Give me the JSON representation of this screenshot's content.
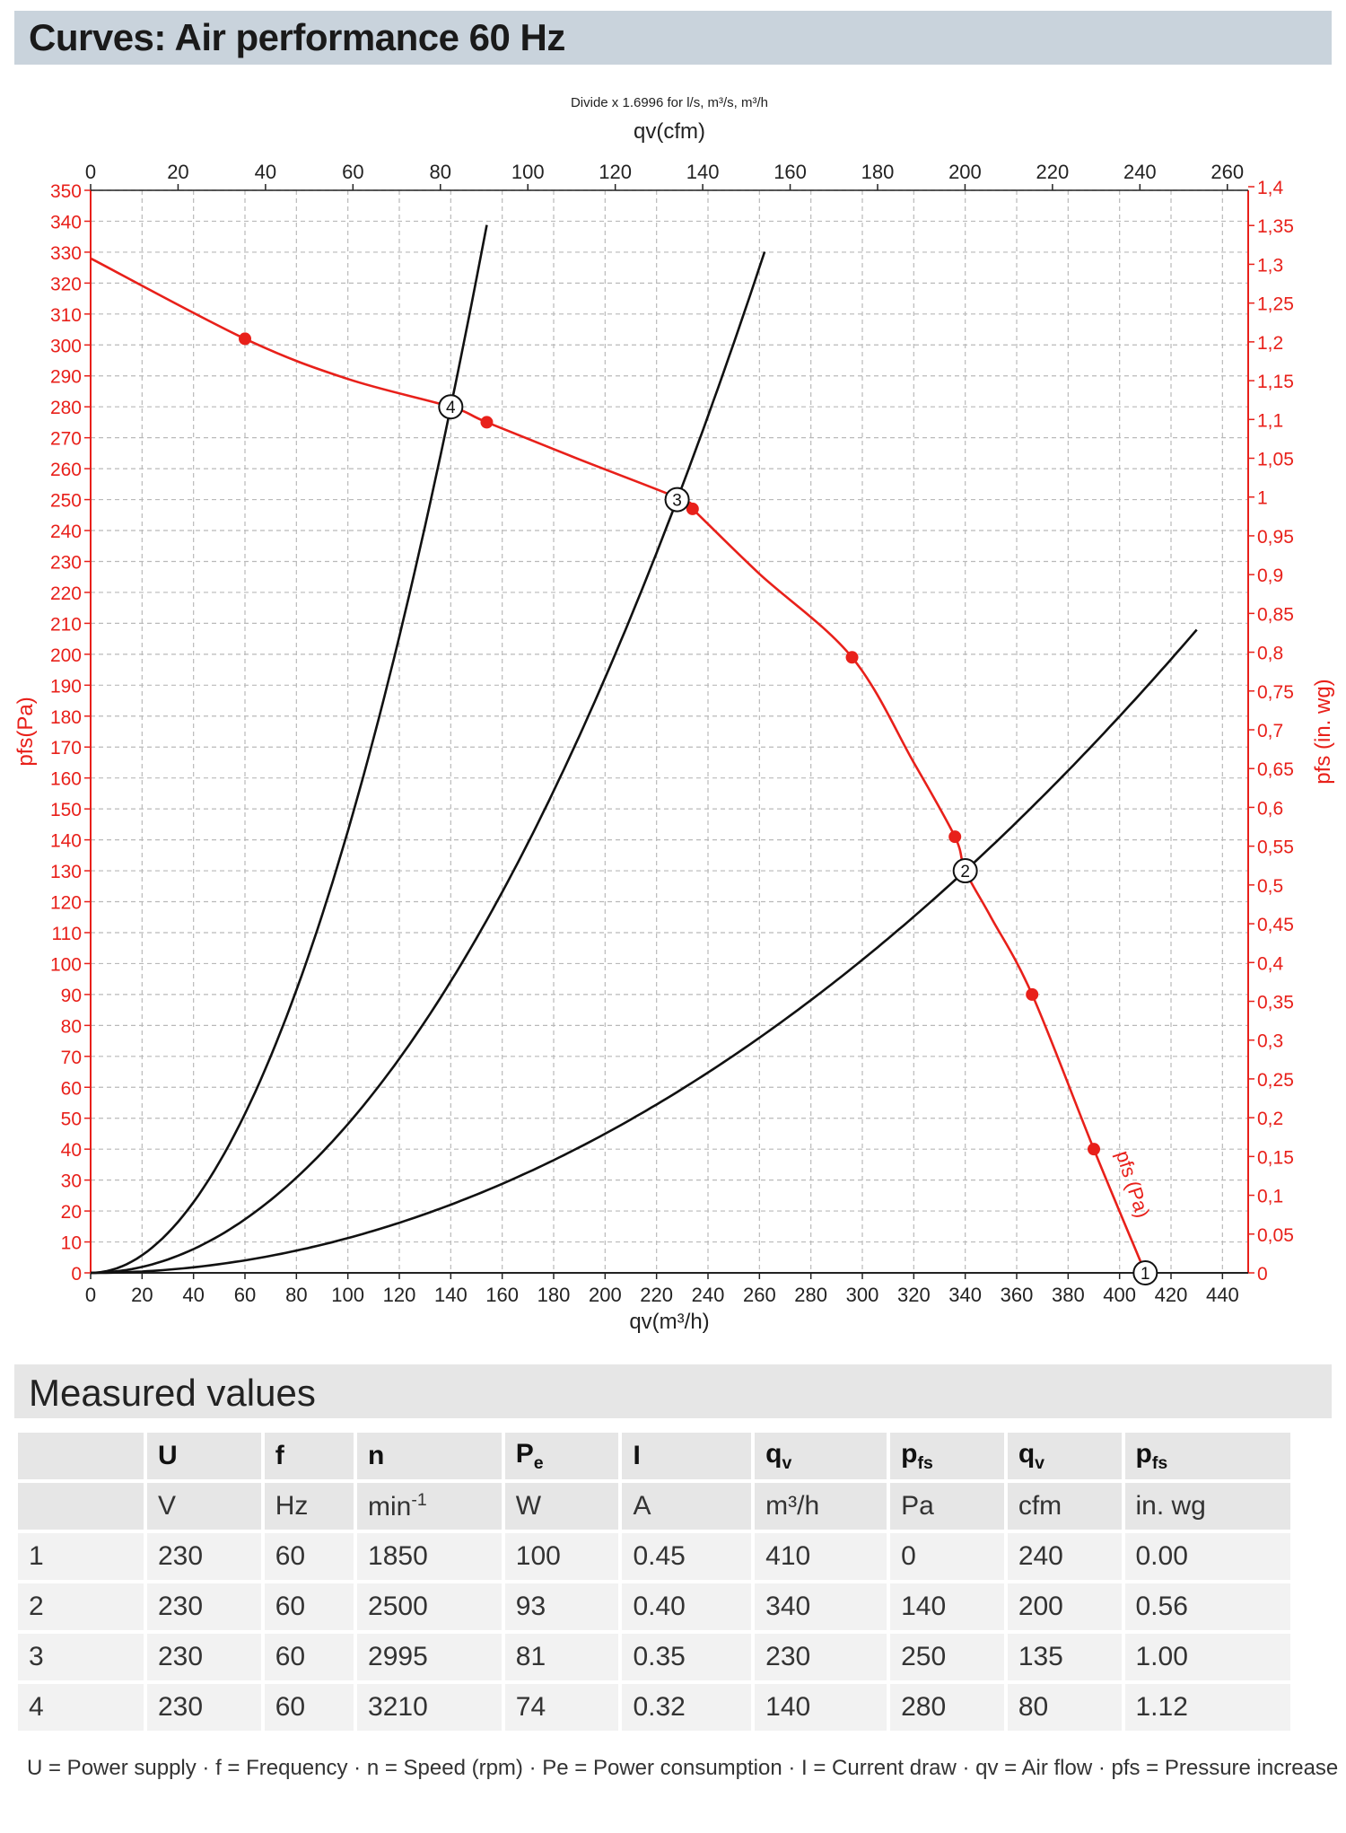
{
  "title": "Curves: Air performance 60 Hz",
  "chart_data": {
    "type": "line",
    "top_note": "Divide x 1.6996 for l/s, m³/s, m³/h",
    "top_axis_label": "qv(cfm)",
    "xlabel": "qv(m³/h)",
    "ylabel_left": "pfs(Pa)",
    "ylabel_right": "pfs (in. wg)",
    "curve_label": "pfs (Pa)",
    "xlim": [
      0,
      450
    ],
    "ylim": [
      0,
      350
    ],
    "top_xlim": [
      0,
      265
    ],
    "right_ylim": [
      0,
      1.4
    ],
    "x_ticks": [
      "0",
      "20",
      "40",
      "60",
      "80",
      "100",
      "120",
      "140",
      "160",
      "180",
      "200",
      "220",
      "240",
      "260",
      "280",
      "300",
      "320",
      "340",
      "360",
      "380",
      "400",
      "420",
      "440"
    ],
    "top_ticks": [
      "0",
      "20",
      "40",
      "60",
      "80",
      "100",
      "120",
      "140",
      "160",
      "180",
      "200",
      "220",
      "240",
      "260"
    ],
    "y_ticks_left": [
      "0",
      "10",
      "20",
      "30",
      "40",
      "50",
      "60",
      "70",
      "80",
      "90",
      "100",
      "110",
      "120",
      "130",
      "140",
      "150",
      "160",
      "170",
      "180",
      "190",
      "200",
      "210",
      "220",
      "230",
      "240",
      "250",
      "260",
      "270",
      "280",
      "290",
      "300",
      "310",
      "320",
      "330",
      "340",
      "350"
    ],
    "y_ticks_right": [
      "0",
      "0,05",
      "0,1",
      "0,15",
      "0,2",
      "0,25",
      "0,3",
      "0,35",
      "0,4",
      "0,45",
      "0,5",
      "0,55",
      "0,6",
      "0,65",
      "0,7",
      "0,75",
      "0,8",
      "0,85",
      "0,9",
      "0,95",
      "1",
      "1,05",
      "1,1",
      "1,15",
      "1,2",
      "1,25",
      "1,3",
      "1,35",
      "1,4"
    ],
    "grid": true,
    "series": [
      {
        "name": "pfs (Pa)",
        "color": "#e8201a",
        "x": [
          0,
          60,
          100,
          140,
          154,
          190,
          230,
          234,
          260,
          296,
          320,
          336,
          340,
          350,
          366,
          390,
          410
        ],
        "y": [
          328,
          302,
          289,
          280,
          275,
          263,
          250,
          247,
          226,
          199,
          165,
          141,
          130,
          115,
          90,
          40,
          0
        ],
        "markers_x": [
          60,
          154,
          234,
          296,
          336,
          366,
          390
        ],
        "markers_y": [
          302,
          275,
          247,
          199,
          141,
          90,
          40
        ]
      }
    ],
    "system_curves": [
      {
        "x": [
          0,
          40,
          80,
          120,
          140,
          154
        ],
        "y": [
          0,
          23,
          92,
          207,
          280,
          340
        ]
      },
      {
        "x": [
          0,
          60,
          120,
          180,
          230,
          264
        ],
        "y": [
          0,
          17,
          68,
          153,
          250,
          335
        ]
      },
      {
        "x": [
          0,
          100,
          200,
          300,
          340,
          430
        ],
        "y": [
          0,
          16,
          62,
          140,
          130,
          221
        ]
      }
    ],
    "operating_points": [
      {
        "label": "1",
        "x": 410,
        "y": 0
      },
      {
        "label": "2",
        "x": 340,
        "y": 130
      },
      {
        "label": "3",
        "x": 228,
        "y": 250
      },
      {
        "label": "4",
        "x": 140,
        "y": 280
      }
    ]
  },
  "table": {
    "section_title": "Measured values",
    "header": [
      "U",
      "f",
      "n",
      "Pe",
      "I",
      "qv",
      "pfs",
      "qv",
      "pfs"
    ],
    "units": [
      "V",
      "Hz",
      "min-1",
      "W",
      "A",
      "m³/h",
      "Pa",
      "cfm",
      "in. wg"
    ],
    "rows": [
      [
        "1",
        "230",
        "60",
        "1850",
        "100",
        "0.45",
        "410",
        "0",
        "240",
        "0.00"
      ],
      [
        "2",
        "230",
        "60",
        "2500",
        "93",
        "0.40",
        "340",
        "140",
        "200",
        "0.56"
      ],
      [
        "3",
        "230",
        "60",
        "2995",
        "81",
        "0.35",
        "230",
        "250",
        "135",
        "1.00"
      ],
      [
        "4",
        "230",
        "60",
        "3210",
        "74",
        "0.32",
        "140",
        "280",
        "80",
        "1.12"
      ]
    ]
  },
  "legend": "U = Power supply · f = Frequency · n = Speed (rpm) · Pe = Power consumption · I = Current draw · qv = Air flow · pfs = Pressure increase",
  "colors": {
    "curve": "#e8201a",
    "system": "#111111",
    "grid": "#b5b5b5",
    "title_bg": "#c9d3dc"
  }
}
